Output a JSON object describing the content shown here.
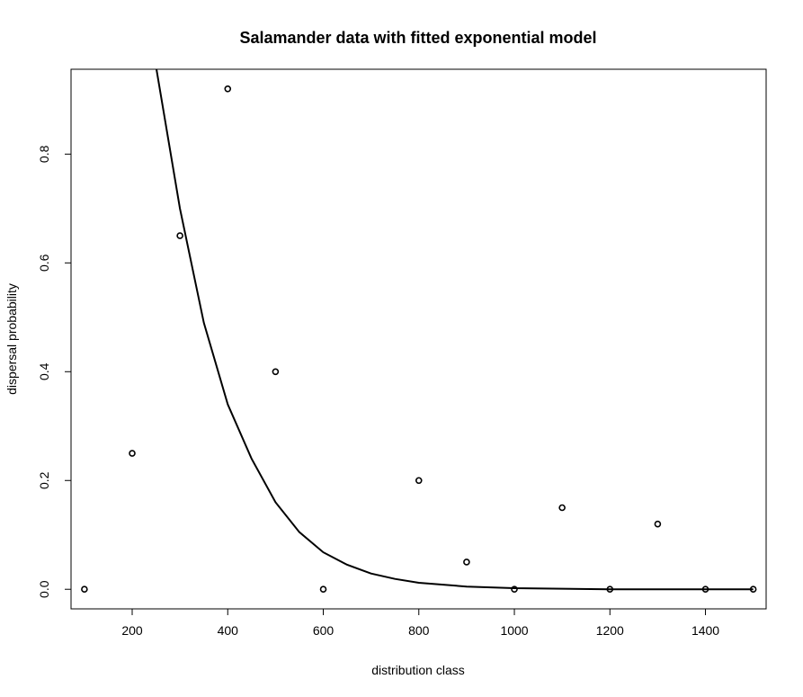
{
  "chart_data": {
    "type": "scatter",
    "title": "Salamander data with fitted exponential model",
    "xlabel": "distribution class",
    "ylabel": "dispersal probability",
    "xlim": [
      72,
      1527
    ],
    "ylim": [
      -0.036,
      0.956
    ],
    "xticks": [
      200,
      400,
      600,
      800,
      1000,
      1200,
      1400
    ],
    "xtick_labels": [
      "200",
      "400",
      "600",
      "800",
      "1000",
      "1200",
      "1400"
    ],
    "yticks": [
      0.0,
      0.2,
      0.4,
      0.6,
      0.8
    ],
    "ytick_labels": [
      "0.0",
      "0.2",
      "0.4",
      "0.6",
      "0.8"
    ],
    "grid": false,
    "series": [
      {
        "kind": "points",
        "x": [
          100,
          200,
          300,
          400,
          500,
          600,
          800,
          900,
          1000,
          1100,
          1200,
          1300,
          1400,
          1500
        ],
        "y": [
          0.0,
          0.25,
          0.65,
          0.92,
          0.4,
          0.0,
          0.2,
          0.05,
          0.0,
          0.15,
          0.0,
          0.12,
          0.0,
          0.0
        ]
      },
      {
        "kind": "fitted-curve",
        "x": [
          250,
          300,
          350,
          400,
          450,
          500,
          550,
          600,
          650,
          700,
          750,
          800,
          900,
          1000,
          1100,
          1200,
          1300,
          1400,
          1500
        ],
        "y": [
          0.96,
          0.7,
          0.49,
          0.34,
          0.24,
          0.16,
          0.105,
          0.068,
          0.045,
          0.029,
          0.019,
          0.012,
          0.005,
          0.002,
          0.001,
          0.0,
          0.0,
          0.0,
          0.0
        ]
      }
    ]
  }
}
